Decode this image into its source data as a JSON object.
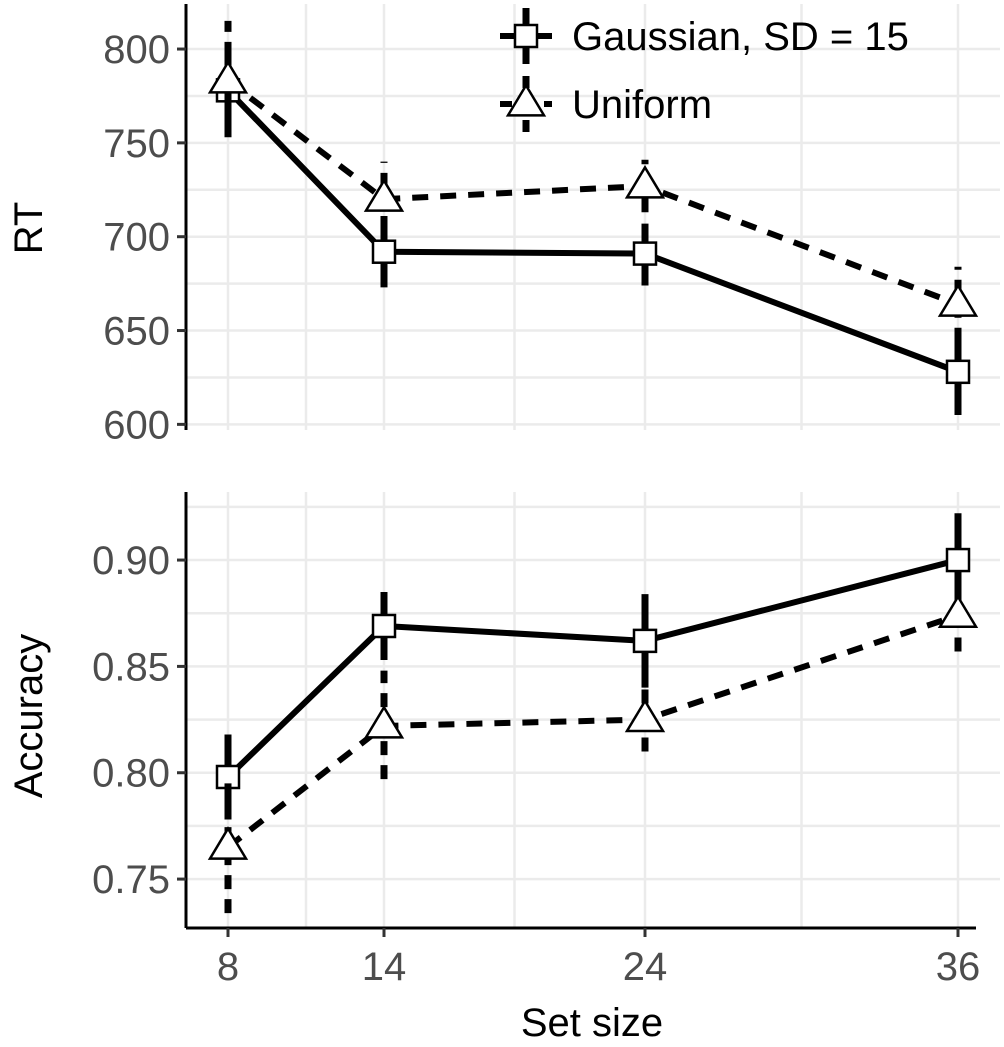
{
  "chart_data": [
    {
      "type": "line",
      "panel": "top",
      "ylabel": "RT",
      "xlabel": "",
      "x": [
        8,
        14,
        24,
        36
      ],
      "x_ticks": [
        "8",
        "14",
        "24",
        "36"
      ],
      "ylim": [
        597,
        824
      ],
      "y_ticks": [
        600,
        650,
        700,
        750,
        800
      ],
      "y_tick_labels": [
        "600",
        "650",
        "700",
        "750",
        "800"
      ],
      "grid": true,
      "series": [
        {
          "name": "Gaussian, SD = 15",
          "marker": "square",
          "line_style": "solid",
          "values": [
            778,
            692,
            691,
            628
          ],
          "err_low": [
            753,
            673,
            674,
            605
          ],
          "err_high": [
            803,
            711,
            707,
            650
          ]
        },
        {
          "name": "Uniform",
          "marker": "triangle",
          "line_style": "dashed",
          "values": [
            783,
            720,
            727,
            664
          ],
          "err_low": [
            758,
            701,
            713,
            644
          ],
          "err_high": [
            815,
            740,
            741,
            684
          ]
        }
      ]
    },
    {
      "type": "line",
      "panel": "bottom",
      "ylabel": "Accuracy",
      "xlabel": "Set size",
      "x": [
        8,
        14,
        24,
        36
      ],
      "x_ticks": [
        "8",
        "14",
        "24",
        "36"
      ],
      "ylim": [
        0.727,
        0.932
      ],
      "y_ticks": [
        0.75,
        0.8,
        0.85,
        0.9
      ],
      "y_tick_labels": [
        "0.75",
        "0.80",
        "0.85",
        "0.90"
      ],
      "grid": true,
      "series": [
        {
          "name": "Gaussian, SD = 15",
          "marker": "square",
          "line_style": "solid",
          "values": [
            0.798,
            0.869,
            0.862,
            0.9
          ],
          "err_low": [
            0.778,
            0.853,
            0.84,
            0.878
          ],
          "err_high": [
            0.818,
            0.885,
            0.884,
            0.922
          ]
        },
        {
          "name": "Uniform",
          "marker": "triangle",
          "line_style": "dashed",
          "values": [
            0.765,
            0.822,
            0.825,
            0.874
          ],
          "err_low": [
            0.734,
            0.797,
            0.81,
            0.857
          ],
          "err_high": [
            0.795,
            0.848,
            0.84,
            0.891
          ]
        }
      ]
    }
  ],
  "legend": {
    "position": "top-right",
    "entries": [
      {
        "label": "Gaussian, SD = 15",
        "marker": "square",
        "line_style": "solid"
      },
      {
        "label": "Uniform",
        "marker": "triangle",
        "line_style": "dashed"
      }
    ]
  },
  "colors": {
    "line": "#000000",
    "marker_fill": "#ffffff",
    "grid": "#ebebeb",
    "tick_label": "#4d4d4d"
  }
}
